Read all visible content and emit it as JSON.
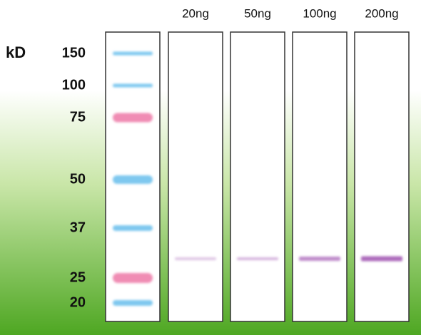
{
  "unit_label": "kD",
  "markers": [
    150,
    100,
    75,
    50,
    37,
    25,
    20
  ],
  "lanes": [
    "20ng",
    "50ng",
    "100ng",
    "200ng"
  ]
}
